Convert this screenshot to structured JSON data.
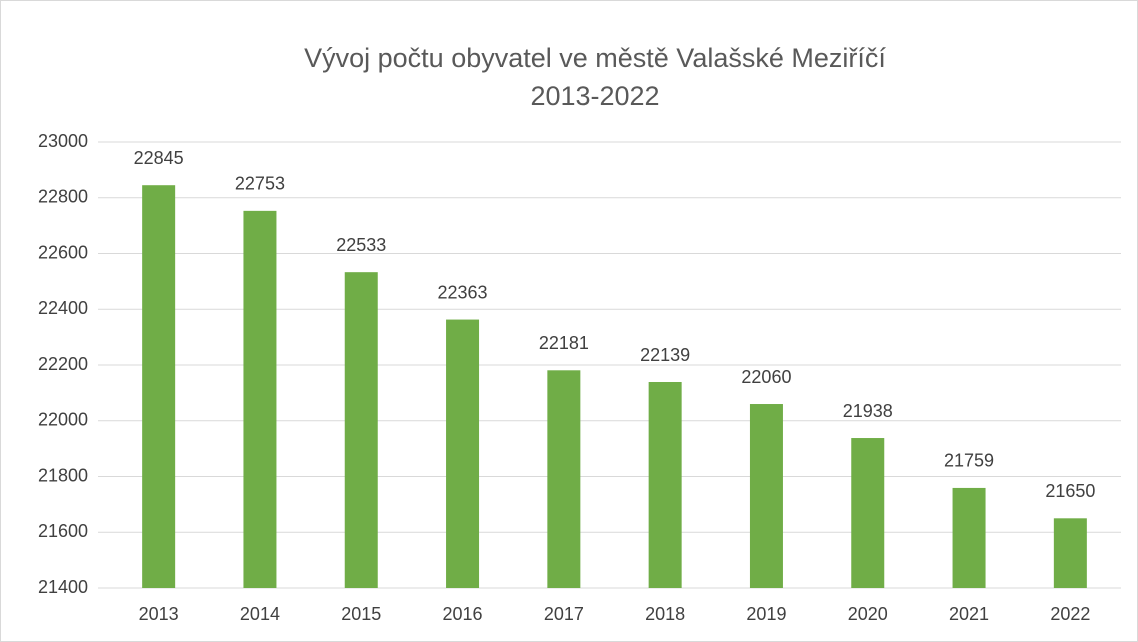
{
  "chart_data": {
    "type": "bar",
    "title": "Vývoj počtu obyvatel ve městě Valašské Meziříčí",
    "subtitle": "2013-2022",
    "categories": [
      "2013",
      "2014",
      "2015",
      "2016",
      "2017",
      "2018",
      "2019",
      "2020",
      "2021",
      "2022"
    ],
    "values": [
      22845,
      22753,
      22533,
      22363,
      22181,
      22139,
      22060,
      21938,
      21759,
      21650
    ],
    "color": "#70ad47",
    "ylim": [
      21400,
      23000
    ],
    "yticks": [
      21400,
      21600,
      21800,
      22000,
      22200,
      22400,
      22600,
      22800,
      23000
    ],
    "grid": true
  }
}
